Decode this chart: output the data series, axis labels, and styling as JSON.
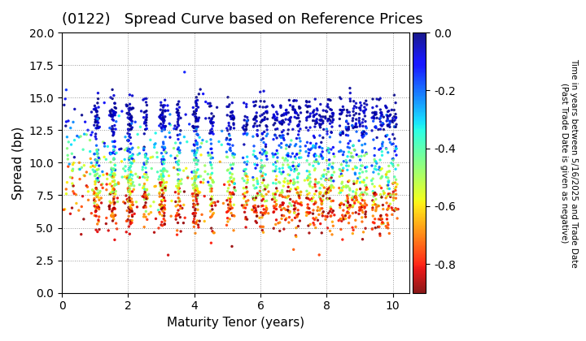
{
  "title": "(0122)   Spread Curve based on Reference Prices",
  "xlabel": "Maturity Tenor (years)",
  "ylabel": "Spread (bp)",
  "colorbar_label": "Time in years between 5/16/2025 and Trade Date\n(Past Trade Date is given as negative)",
  "xlim": [
    0,
    10.5
  ],
  "ylim": [
    0.0,
    20.0
  ],
  "color_min": -0.9,
  "color_max": 0.0,
  "cmap": "jet_r",
  "background_color": "#ffffff",
  "title_fontsize": 13,
  "axis_fontsize": 11,
  "colorbar_tick_values": [
    0.0,
    -0.2,
    -0.4,
    -0.6,
    -0.8
  ],
  "colorbar_tick_labels": [
    "0.0",
    "-0.2",
    "-0.4",
    "-0.6",
    "-0.8"
  ]
}
